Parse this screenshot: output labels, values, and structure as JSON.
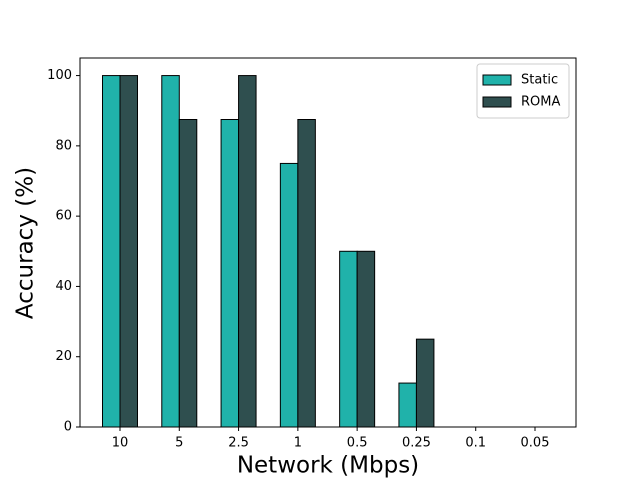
{
  "chart_data": {
    "type": "bar",
    "x_label": "Network (Mbps)",
    "y_label": "Accuracy (%)",
    "categories": [
      "10",
      "5",
      "2.5",
      "1",
      "0.5",
      "0.25",
      "0.1",
      "0.05"
    ],
    "series": [
      {
        "name": "Static",
        "color": "#20b2aa",
        "values": [
          100,
          100,
          87.5,
          75,
          50,
          12.5,
          0,
          0
        ]
      },
      {
        "name": "ROMA",
        "color": "#2f4f4f",
        "values": [
          100,
          87.5,
          100,
          87.5,
          50,
          25,
          0,
          0
        ]
      }
    ],
    "ylim": [
      0,
      105
    ],
    "yticks": [
      0,
      20,
      40,
      60,
      80,
      100
    ],
    "legend": "upper right"
  }
}
